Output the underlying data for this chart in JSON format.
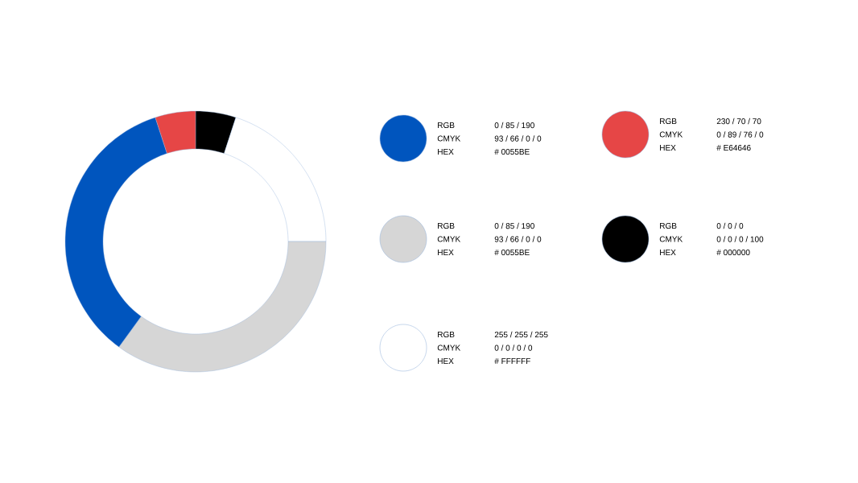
{
  "chart_data": [
    {
      "type": "donut",
      "categories": [
        null,
        null,
        null,
        null,
        null
      ],
      "values": [
        5,
        20,
        35,
        35,
        5
      ],
      "colors": [
        "#000000",
        "#ffffff",
        "#d6d6d6",
        "#0055be",
        "#e64646"
      ]
    },
    {
      "type": "other",
      "colors": [
        "#0055be",
        "#e64646",
        "#d6d6d6",
        "#000000",
        "#ffffff"
      ],
      "annotations": [
        "RGB",
        "0 / 85 / 190",
        "CMYK",
        "93 / 66 / 0 / 0",
        "HEX",
        "# 0055BE",
        "RGB",
        "230 / 70 / 70",
        "CMYK",
        "0 / 89 / 76 / 0",
        "HEX",
        "# E64646",
        "RGB",
        "0 / 85 / 190",
        "CMYK",
        "93 / 66 / 0 / 0",
        "HEX",
        "# 0055BE",
        "RGB",
        "0 / 0 / 0",
        "CMYK",
        "0 / 0  / 0 / 100",
        "HEX",
        "# 000000",
        "RGB",
        "255 / 255 / 255",
        "CMYK",
        "0 / 0  / 0 / 0",
        "HEX",
        "# FFFFFF"
      ]
    }
  ]
}
